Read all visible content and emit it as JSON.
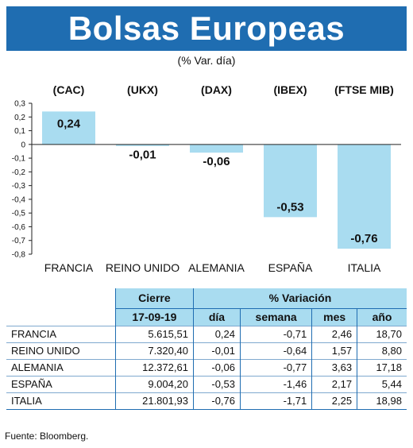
{
  "header": {
    "title": "Bolsas Europeas",
    "subtitle": "(% Var. día)"
  },
  "colors": {
    "banner": "#1f6db1",
    "bar": "#a9dcf0",
    "header_fill": "#a9dcf0"
  },
  "chart_data": {
    "type": "bar",
    "index_codes": [
      "(CAC)",
      "(UKX)",
      "(DAX)",
      "(IBEX)",
      "(FTSE MIB)"
    ],
    "categories": [
      "FRANCIA",
      "REINO UNIDO",
      "ALEMANIA",
      "ESPAÑA",
      "ITALIA"
    ],
    "values": [
      0.24,
      -0.01,
      -0.06,
      -0.53,
      -0.76
    ],
    "value_labels": [
      "0,24",
      "-0,01",
      "-0,06",
      "-0,53",
      "-0,76"
    ],
    "ylim": [
      -0.8,
      0.3
    ],
    "yticks": [
      0.3,
      0.2,
      0.1,
      0,
      -0.1,
      -0.2,
      -0.3,
      -0.4,
      -0.5,
      -0.6,
      -0.7,
      -0.8
    ],
    "ytick_labels": [
      "0,3",
      "0,2",
      "0,1",
      "0",
      "-0,1",
      "-0,2",
      "-0,3",
      "-0,4",
      "-0,5",
      "-0,6",
      "-0,7",
      "-0,8"
    ],
    "grid": false,
    "title": "",
    "xlabel": "",
    "ylabel": ""
  },
  "table": {
    "col_cierre": "Cierre",
    "col_variacion": "% Variación",
    "date": "17-09-19",
    "sub_headers": [
      "día",
      "semana",
      "mes",
      "año"
    ],
    "rows": [
      {
        "name": "FRANCIA",
        "cierre": "5.615,51",
        "dia": "0,24",
        "semana": "-0,71",
        "mes": "2,46",
        "anio": "18,70"
      },
      {
        "name": "REINO UNIDO",
        "cierre": "7.320,40",
        "dia": "-0,01",
        "semana": "-0,64",
        "mes": "1,57",
        "anio": "8,80"
      },
      {
        "name": "ALEMANIA",
        "cierre": "12.372,61",
        "dia": "-0,06",
        "semana": "-0,77",
        "mes": "3,63",
        "anio": "17,18"
      },
      {
        "name": "ESPAÑA",
        "cierre": "9.004,20",
        "dia": "-0,53",
        "semana": "-1,46",
        "mes": "2,17",
        "anio": "5,44"
      },
      {
        "name": "ITALIA",
        "cierre": "21.801,93",
        "dia": "-0,76",
        "semana": "-1,71",
        "mes": "2,25",
        "anio": "18,98"
      }
    ]
  },
  "source": "Fuente: Bloomberg."
}
